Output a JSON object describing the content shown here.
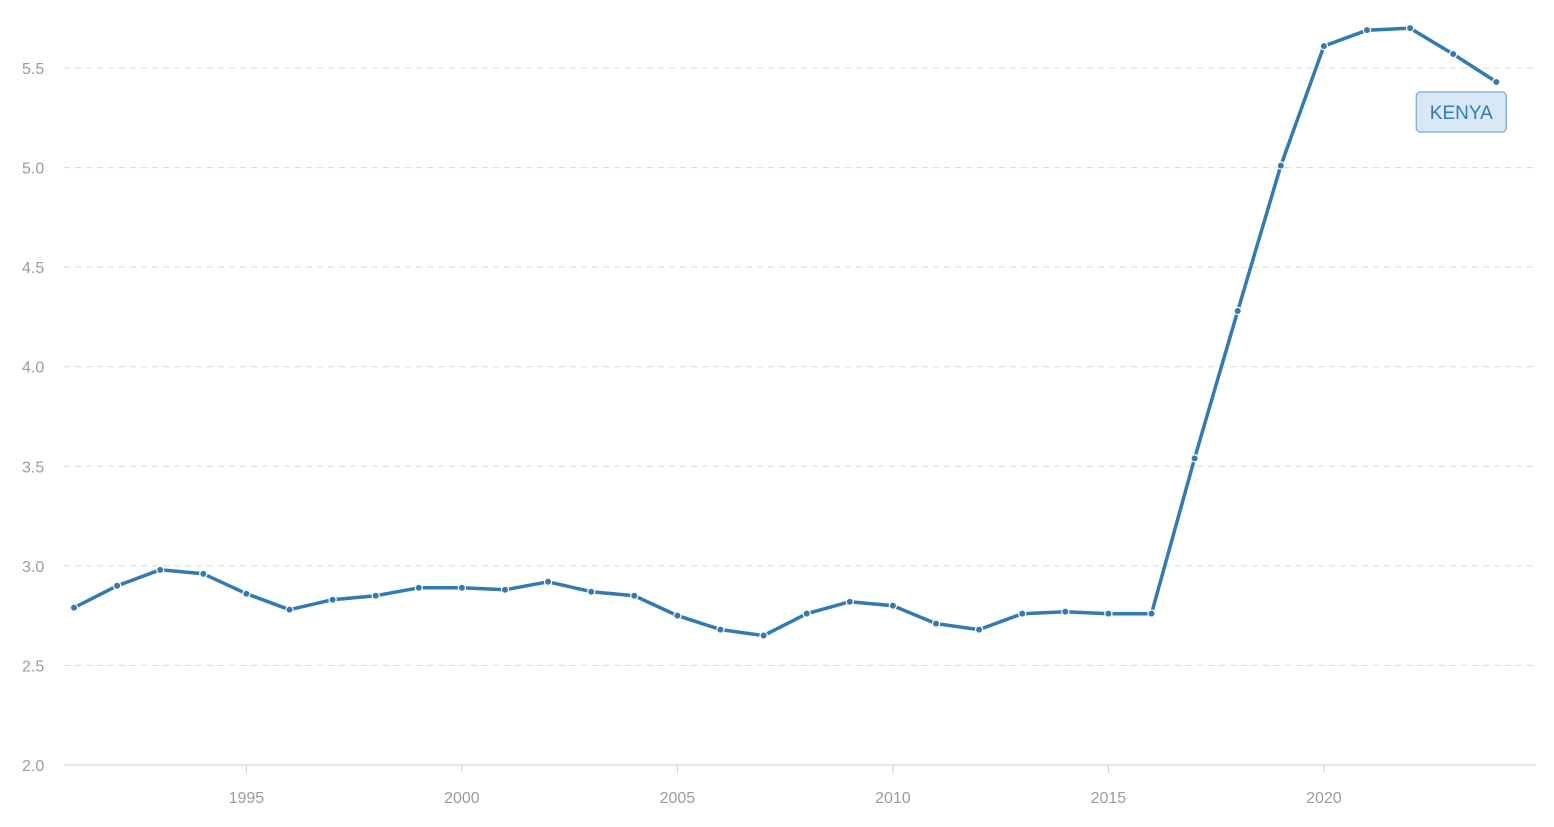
{
  "chart_data": {
    "type": "line",
    "title": "",
    "xlabel": "",
    "ylabel": "",
    "xlim": [
      1991,
      2024
    ],
    "ylim": [
      2.0,
      5.5
    ],
    "grid": true,
    "y_ticks": [
      "2.0",
      "2.5",
      "3.0",
      "3.5",
      "4.0",
      "4.5",
      "5.0",
      "5.5"
    ],
    "x_ticks": [
      "1995",
      "2000",
      "2005",
      "2010",
      "2015",
      "2020"
    ],
    "x": [
      1991,
      1992,
      1993,
      1994,
      1995,
      1996,
      1997,
      1998,
      1999,
      2000,
      2001,
      2002,
      2003,
      2004,
      2005,
      2006,
      2007,
      2008,
      2009,
      2010,
      2011,
      2012,
      2013,
      2014,
      2015,
      2016,
      2017,
      2018,
      2019,
      2020,
      2021,
      2022,
      2023,
      2024
    ],
    "series": [
      {
        "name": "KENYA",
        "color": "#337ab0",
        "label_bg": "#d8e8f5",
        "label_border": "#8ab4d6",
        "values": [
          2.79,
          2.9,
          2.98,
          2.96,
          2.86,
          2.78,
          2.83,
          2.85,
          2.89,
          2.89,
          2.88,
          2.92,
          2.87,
          2.85,
          2.75,
          2.68,
          2.65,
          2.76,
          2.82,
          2.8,
          2.71,
          2.68,
          2.76,
          2.77,
          2.76,
          2.76,
          3.54,
          4.28,
          5.01,
          5.61,
          5.69,
          5.7,
          5.57,
          5.43
        ]
      }
    ]
  }
}
